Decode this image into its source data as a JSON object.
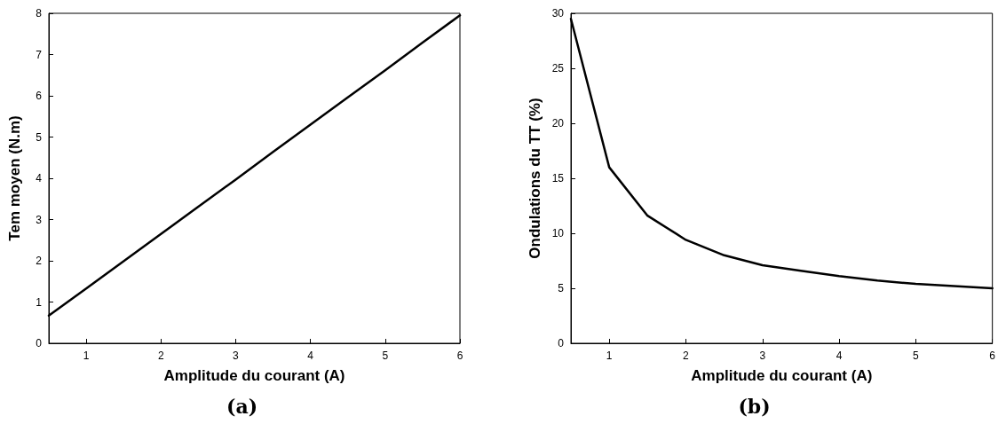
{
  "chart_data": [
    {
      "type": "line",
      "title": "(a)",
      "xlabel": "Amplitude du courant (A)",
      "ylabel": "Tem moyen (N.m)",
      "x": [
        0.5,
        1,
        1.5,
        2,
        2.5,
        3,
        3.5,
        4,
        4.5,
        5,
        5.5,
        6
      ],
      "series": [
        {
          "color": "#000000",
          "values": [
            0.67,
            1.33,
            1.99,
            2.65,
            3.31,
            3.97,
            4.64,
            5.3,
            5.96,
            6.62,
            7.29,
            7.95
          ]
        }
      ],
      "xlim": [
        0.5,
        6
      ],
      "xticks": [
        1,
        2,
        3,
        4,
        5,
        6
      ],
      "ylim": [
        0,
        8
      ],
      "yticks": [
        0,
        1,
        2,
        3,
        4,
        5,
        6,
        7,
        8
      ],
      "grid": false,
      "marker": "none",
      "line_style": "solid"
    },
    {
      "type": "line",
      "title": "(b)",
      "xlabel": "Amplitude du courant (A)",
      "ylabel": "Ondulations du TT (%)",
      "x": [
        0.5,
        1,
        1.5,
        2,
        2.5,
        3,
        3.5,
        4,
        4.5,
        5,
        5.5,
        6
      ],
      "series": [
        {
          "color": "#000000",
          "values": [
            29.5,
            16,
            11.6,
            9.4,
            8,
            7.1,
            6.6,
            6.1,
            5.7,
            5.4,
            5.2,
            5.0
          ]
        }
      ],
      "xlim": [
        0.5,
        6
      ],
      "xticks": [
        1,
        2,
        3,
        4,
        5,
        6
      ],
      "ylim": [
        0,
        30
      ],
      "yticks": [
        0,
        5,
        10,
        15,
        20,
        25,
        30
      ],
      "grid": false,
      "marker": "none",
      "line_style": "solid"
    }
  ]
}
